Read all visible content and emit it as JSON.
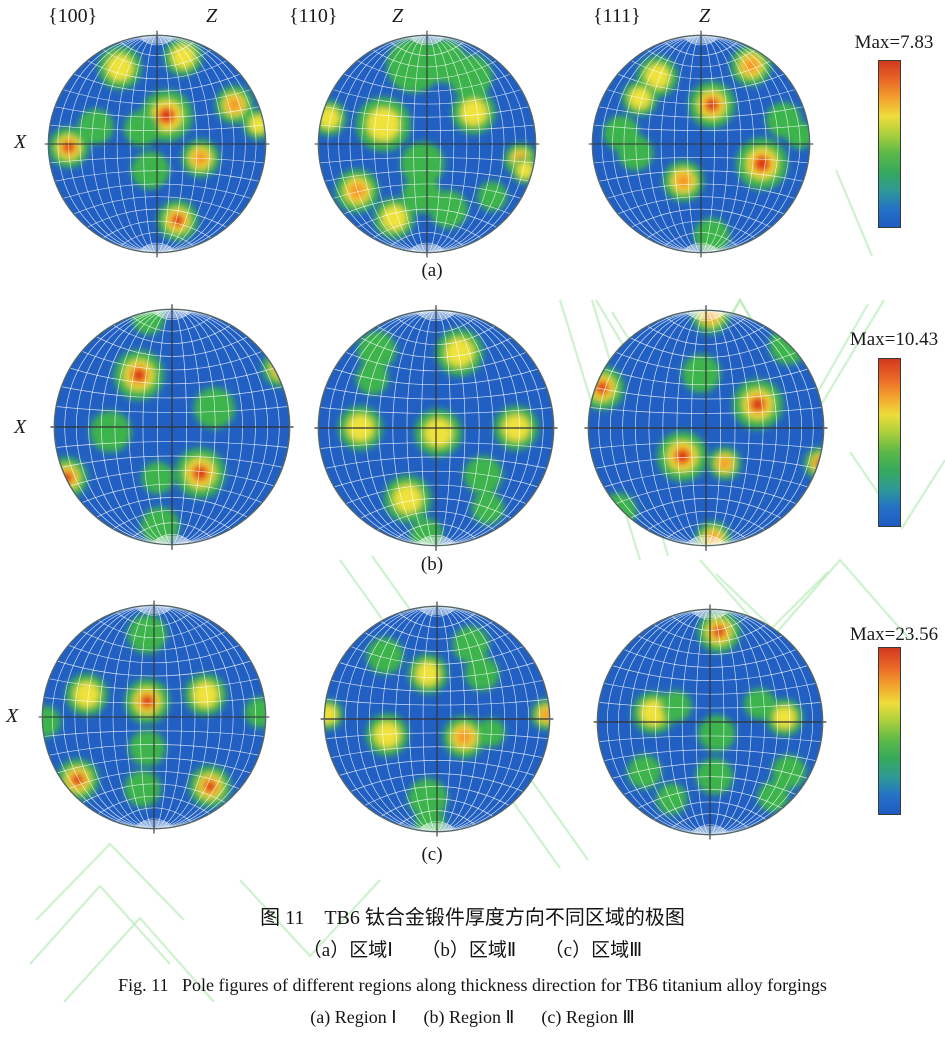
{
  "figure": {
    "axis_top_label": "Z",
    "axis_left_label": "X",
    "disc_color": "#2160c2",
    "grid_color": "rgba(255,255,255,0.78)",
    "blob_colors": {
      "green": "#3db44b",
      "yellow": "#eee23a",
      "orange": "#f59a2b",
      "red": "#dc3418"
    },
    "colorbar_stops": [
      "#d13a1e",
      "#e96526",
      "#f3a02d",
      "#eedd3a",
      "#a9cf3d",
      "#5cb947",
      "#36a95c",
      "#2e9a96",
      "#2472c6",
      "#1e5bc2"
    ],
    "watermark_color": "#aeeaae",
    "rows": [
      {
        "row_label": "(a)",
        "max_label": "Max=7.83",
        "figures": [
          {
            "miller": "{100}",
            "blobs": [
              [
                66,
                30,
                16,
                2
              ],
              [
                124,
                20,
                14,
                2
              ],
              [
                109,
                74,
                19,
                4
              ],
              [
                86,
                86,
                13,
                1
              ],
              [
                44,
                84,
                13,
                1
              ],
              [
                19,
                103,
                15,
                4
              ],
              [
                171,
                64,
                14,
                3
              ],
              [
                193,
                82,
                11,
                2
              ],
              [
                94,
                124,
                14,
                1
              ],
              [
                140,
                113,
                14,
                3
              ],
              [
                119,
                170,
                15,
                4
              ]
            ]
          },
          {
            "miller": "{110}",
            "blobs": [
              [
                88,
                28,
                20,
                1
              ],
              [
                116,
                24,
                16,
                1
              ],
              [
                140,
                38,
                16,
                1
              ],
              [
                60,
                82,
                20,
                2
              ],
              [
                10,
                76,
                13,
                2
              ],
              [
                36,
                143,
                16,
                3
              ],
              [
                143,
                71,
                16,
                2
              ],
              [
                186,
                114,
                12,
                3
              ],
              [
                190,
                124,
                10,
                2
              ],
              [
                96,
                118,
                16,
                1
              ],
              [
                95,
                146,
                14,
                1
              ],
              [
                70,
                168,
                15,
                2
              ],
              [
                120,
                160,
                14,
                1
              ],
              [
                160,
                148,
                11,
                1
              ]
            ]
          },
          {
            "miller": "{111}",
            "blobs": [
              [
                146,
                28,
                15,
                3
              ],
              [
                60,
                38,
                15,
                2
              ],
              [
                44,
                58,
                13,
                2
              ],
              [
                110,
                64,
                17,
                4
              ],
              [
                27,
                90,
                13,
                1
              ],
              [
                40,
                108,
                13,
                1
              ],
              [
                176,
                78,
                13,
                1
              ],
              [
                156,
                118,
                19,
                4
              ],
              [
                84,
                134,
                15,
                3
              ],
              [
                110,
                184,
                13,
                1
              ],
              [
                191,
                92,
                10,
                1
              ]
            ]
          }
        ]
      },
      {
        "row_label": "(b)",
        "max_label": "Max=10.43",
        "figures": [
          {
            "blobs": [
              [
                72,
                56,
                17,
                4
              ],
              [
                193,
                50,
                13,
                4
              ],
              [
                136,
                84,
                14,
                1
              ],
              [
                48,
                104,
                14,
                1
              ],
              [
                11,
                143,
                14,
                4
              ],
              [
                124,
                139,
                17,
                4
              ],
              [
                88,
                143,
                11,
                1
              ],
              [
                90,
                184,
                13,
                1
              ],
              [
                80,
                8,
                11,
                1
              ]
            ]
          },
          {
            "blobs": [
              [
                120,
                36,
                16,
                2
              ],
              [
                50,
                34,
                13,
                1
              ],
              [
                46,
                58,
                11,
                1
              ],
              [
                36,
                100,
                15,
                2
              ],
              [
                102,
                104,
                16,
                2
              ],
              [
                168,
                100,
                15,
                2
              ],
              [
                76,
                160,
                16,
                2
              ],
              [
                140,
                140,
                13,
                1
              ],
              [
                144,
                168,
                11,
                1
              ],
              [
                92,
                190,
                11,
                1
              ]
            ]
          },
          {
            "blobs": [
              [
                104,
                4,
                13,
                3
              ],
              [
                170,
                30,
                13,
                1
              ],
              [
                96,
                54,
                13,
                1
              ],
              [
                12,
                66,
                15,
                4
              ],
              [
                144,
                80,
                17,
                4
              ],
              [
                80,
                124,
                17,
                4
              ],
              [
                116,
                130,
                11,
                3
              ],
              [
                197,
                130,
                11,
                4
              ],
              [
                26,
                170,
                12,
                1
              ],
              [
                106,
                194,
                12,
                3
              ]
            ]
          }
        ]
      },
      {
        "row_label": "(c)",
        "max_label": "Max=23.56",
        "figures": [
          {
            "blobs": [
              [
                94,
                26,
                14,
                1
              ],
              [
                40,
                80,
                15,
                2
              ],
              [
                94,
                86,
                16,
                4
              ],
              [
                146,
                80,
                15,
                2
              ],
              [
                3,
                104,
                11,
                1
              ],
              [
                195,
                96,
                11,
                1
              ],
              [
                94,
                128,
                13,
                1
              ],
              [
                32,
                156,
                15,
                4
              ],
              [
                90,
                164,
                13,
                1
              ],
              [
                150,
                162,
                15,
                4
              ]
            ]
          },
          {
            "blobs": [
              [
                54,
                44,
                13,
                1
              ],
              [
                130,
                34,
                13,
                1
              ],
              [
                92,
                60,
                14,
                2
              ],
              [
                140,
                60,
                12,
                1
              ],
              [
                3,
                96,
                11,
                2
              ],
              [
                197,
                96,
                11,
                3
              ],
              [
                56,
                114,
                15,
                2
              ],
              [
                124,
                116,
                15,
                3
              ],
              [
                148,
                112,
                10,
                1
              ],
              [
                92,
                170,
                14,
                1
              ],
              [
                94,
                193,
                11,
                1
              ]
            ]
          },
          {
            "blobs": [
              [
                108,
                20,
                15,
                4
              ],
              [
                50,
                92,
                15,
                2
              ],
              [
                70,
                86,
                11,
                1
              ],
              [
                144,
                84,
                11,
                1
              ],
              [
                166,
                96,
                13,
                2
              ],
              [
                106,
                110,
                13,
                1
              ],
              [
                42,
                144,
                12,
                1
              ],
              [
                66,
                168,
                11,
                1
              ],
              [
                104,
                148,
                13,
                1
              ],
              [
                170,
                144,
                12,
                1
              ],
              [
                156,
                166,
                11,
                1
              ]
            ]
          }
        ]
      }
    ]
  },
  "captions": {
    "zh_title": "图 11　TB6 钛合金锻件厚度方向不同区域的极图",
    "zh_sub": "（a）区域Ⅰ　　（b）区域Ⅱ　　（c）区域Ⅲ",
    "en_title": "Fig. 11   Pole figures of different regions along thickness direction for TB6 titanium alloy forgings",
    "en_sub": "(a) Region Ⅰ      (b) Region Ⅱ      (c) Region Ⅲ"
  },
  "chart_data": {
    "type": "heatmap",
    "title": "Pole figures of different regions along thickness direction for TB6 titanium alloy forgings",
    "projection": "stereographic pole figure, Z axis top, X axis left",
    "rows": [
      {
        "label": "(a)",
        "region": "区域Ⅰ / Region Ⅰ",
        "pole_figures": [
          "{100}",
          "{110}",
          "{111}"
        ],
        "max_intensity": 7.83
      },
      {
        "label": "(b)",
        "region": "区域Ⅱ / Region Ⅱ",
        "pole_figures": [
          "{100}",
          "{110}",
          "{111}"
        ],
        "max_intensity": 10.43
      },
      {
        "label": "(c)",
        "region": "区域Ⅲ / Region Ⅲ",
        "pole_figures": [
          "{100}",
          "{110}",
          "{111}"
        ],
        "max_intensity": 23.56
      }
    ],
    "colorbar": {
      "orientation": "vertical",
      "top": "max (red)",
      "bottom": "min (blue)"
    }
  }
}
